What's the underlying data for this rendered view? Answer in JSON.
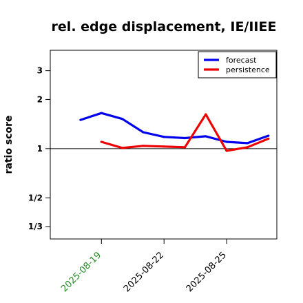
{
  "chart_data": {
    "type": "line",
    "title": "rel. edge displacement, IE/IIEE",
    "xlabel": "",
    "ylabel": "ratio score",
    "y_scale": "log",
    "ylim": [
      0.28,
      4.0
    ],
    "y_ticks": [
      {
        "value": 0.3333,
        "label": "1/3"
      },
      {
        "value": 0.5,
        "label": "1/2"
      },
      {
        "value": 1,
        "label": "1"
      },
      {
        "value": 2,
        "label": "2"
      },
      {
        "value": 3,
        "label": "3"
      }
    ],
    "reference_line": 1,
    "x_ticks": [
      {
        "label": "2025-08-19",
        "color": "#228b22"
      },
      {
        "label": "2025-08-22",
        "color": "#000000"
      },
      {
        "label": "2025-08-25",
        "color": "#000000"
      }
    ],
    "x": [
      "2025-08-18",
      "2025-08-19",
      "2025-08-20",
      "2025-08-21",
      "2025-08-22",
      "2025-08-23",
      "2025-08-24",
      "2025-08-25",
      "2025-08-26",
      "2025-08-27"
    ],
    "series": [
      {
        "name": "forecast",
        "color": "#0000ee",
        "values": [
          1.5,
          1.65,
          1.52,
          1.26,
          1.18,
          1.16,
          1.19,
          1.1,
          1.08,
          1.2
        ]
      },
      {
        "name": "persistence",
        "color": "#ee0000",
        "values": [
          null,
          1.1,
          1.01,
          1.04,
          1.03,
          1.02,
          1.62,
          0.97,
          1.02,
          1.15
        ]
      }
    ],
    "legend_position": "top-right",
    "grid": false
  }
}
